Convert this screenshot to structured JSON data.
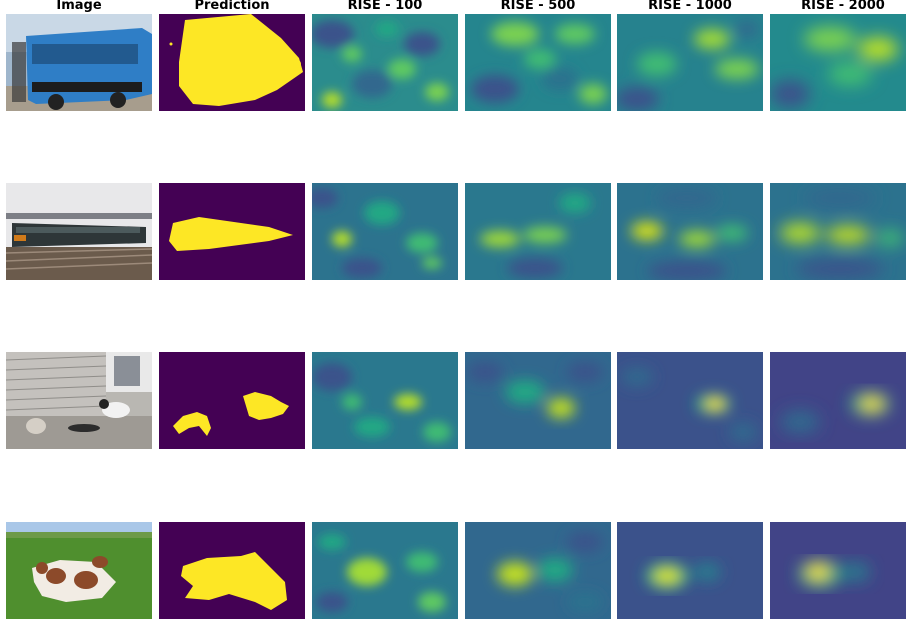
{
  "figure": {
    "column_titles": [
      "Image",
      "Prediction",
      "RISE - 100",
      "RISE - 500",
      "RISE - 1000",
      "RISE - 2000"
    ],
    "colormap": "viridis",
    "colors": {
      "viridis_low": "#440154",
      "viridis_mid": "#21918c",
      "viridis_high": "#fde725",
      "mask_background": "#440154",
      "mask_foreground": "#fde725"
    },
    "rows": [
      {
        "image_subject": "blue bus",
        "prediction": "bus mask",
        "rise_focus": "diffuse"
      },
      {
        "image_subject": "train at platform",
        "prediction": "train mask",
        "rise_focus": "elongated horizontal band"
      },
      {
        "image_subject": "cats by caravan",
        "prediction": "two cat masks",
        "rise_focus": "single right blob"
      },
      {
        "image_subject": "cows on grass",
        "prediction": "cow mask",
        "rise_focus": "left-center blob"
      }
    ]
  }
}
